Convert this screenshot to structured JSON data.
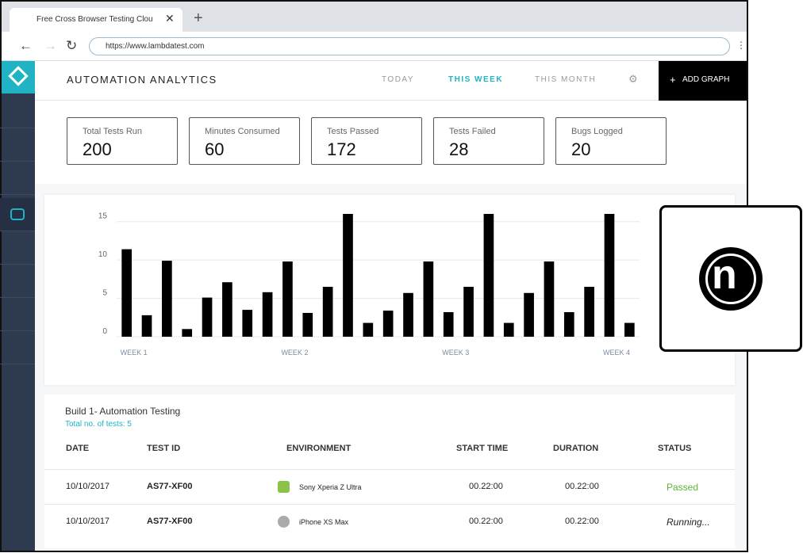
{
  "browser": {
    "tab_title": "Free Cross Browser Testing Clou",
    "url": "https://www.lambdatest.com"
  },
  "header": {
    "title": "AUTOMATION ANALYTICS",
    "filters": [
      "TODAY",
      "THIS WEEK",
      "THIS MONTH"
    ],
    "add_button": "ADD GRAPH"
  },
  "stats": [
    {
      "label": "Total Tests Run",
      "value": "200"
    },
    {
      "label": "Minutes Consumed",
      "value": "60"
    },
    {
      "label": "Tests Passed",
      "value": "172"
    },
    {
      "label": "Tests Failed",
      "value": "28"
    },
    {
      "label": "Bugs Logged",
      "value": "20"
    }
  ],
  "chart_data": {
    "type": "bar",
    "color": "#000000",
    "categories": [
      "WEEK 1",
      null,
      null,
      null,
      null,
      null,
      null,
      null,
      "WEEK 2",
      null,
      null,
      null,
      null,
      null,
      null,
      null,
      "WEEK 3",
      null,
      null,
      null,
      null,
      null,
      null,
      null,
      "WEEK 4",
      null
    ],
    "values": [
      11.4,
      2.8,
      9.9,
      1,
      5.1,
      7.1,
      3.5,
      5.8,
      9.8,
      3.1,
      6.5,
      16,
      1.8,
      3.4,
      5.7,
      9.8,
      3.2,
      6.5,
      16,
      1.8,
      5.7,
      9.8,
      3.2,
      6.5,
      16,
      1.8
    ],
    "ylim": [
      0,
      16
    ],
    "yticks": [
      0,
      5,
      10,
      15
    ],
    "grid": true
  },
  "table": {
    "title": "Build 1- Automation Testing",
    "subtitle": "Total no. of tests: 5",
    "columns": [
      "DATE",
      "TEST ID",
      "ENVIRONMENT",
      "START TIME",
      "DURATION",
      "STATUS"
    ],
    "rows": [
      [
        "10/10/2017",
        "AS77-XF00",
        "Sony Xperia Z Ultra",
        "00.22:00",
        "00.22:00",
        "Passed"
      ],
      [
        "10/10/2017",
        "AS77-XF00",
        "iPhone XS Max",
        "00.22:00",
        "00.22:00",
        "Running..."
      ]
    ]
  }
}
